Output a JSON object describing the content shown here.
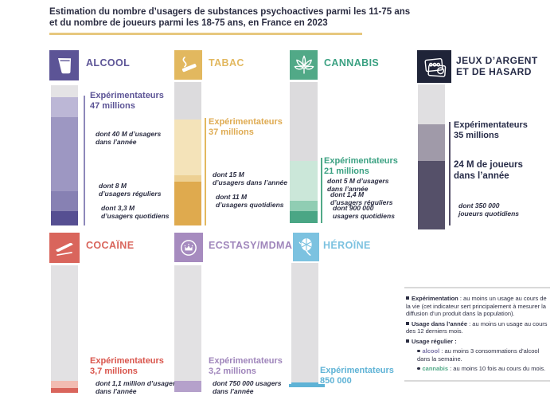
{
  "title": {
    "text": "Estimation du nombre d’usagers de substances psychoactives parmi les 11-75 ans\net du nombre de joueurs parmi les 18-75 ans, en France en 2023"
  },
  "colors": {
    "heading_navy": "#2b2d42",
    "title_underline_gold": "#e7c87e",
    "alcool_purple": "#5c5496",
    "tabac_gold": "#dfab52",
    "cannabis_green": "#3ba182",
    "jeux_navy": "#262b47",
    "cocaine_red": "#d9554c",
    "ecstasy_purple": "#9f85bb",
    "heroine_blue": "#5fb3d6",
    "bar_gray": "#e0dfe1"
  },
  "panels": [
    {
      "title": "ALCOOL",
      "accent": "#5c5496",
      "experimenters": "Expérimentateurs\n47 millions",
      "notes": [
        "dont 40 M d’usagers\ndans l’année",
        "dont 8 M\nd’usagers réguliers",
        "dont 3,3 M\nd’usagers quotidiens"
      ],
      "bar": {
        "segments": [
          {
            "color": "#e4e3e5",
            "h": 15
          },
          {
            "color": "#bcb7d6",
            "h": 25
          },
          {
            "color": "#9d97c2",
            "h": 93
          },
          {
            "color": "#8781b3",
            "h": 25
          },
          {
            "color": "#564f92",
            "h": 18
          }
        ]
      }
    },
    {
      "title": "TABAC",
      "accent": "#e2b85f",
      "experimenters": "Expérimentateurs\n37 millions",
      "notes": [
        "dont 15 M\nd’usagers dans l’année",
        "dont 11 M\nd’usagers quotidiens"
      ],
      "bar": {
        "segments": [
          {
            "color": "#dcdbdd",
            "h": 47
          },
          {
            "color": "#f4e3b9",
            "h": 70
          },
          {
            "color": "#edd093",
            "h": 8
          },
          {
            "color": "#dfaa4e",
            "h": 55
          }
        ]
      }
    },
    {
      "title": "CANNABIS",
      "accent": "#3ba182",
      "experimenters": "Expérimentateurs\n21 millions",
      "notes": [
        "dont 5 M d’usagers\ndans l’année",
        "dont 1,4 M\nd’usagers réguliers",
        "dont 900 000\nusagers quotidiens"
      ],
      "bar": {
        "segments": [
          {
            "color": "#dcdbdd",
            "h": 99
          },
          {
            "color": "#cbe7d9",
            "h": 50
          },
          {
            "color": "#90cdb3",
            "h": 13
          },
          {
            "color": "#4aa685",
            "h": 15
          }
        ]
      }
    },
    {
      "title": "JEUX D’ARGENT\nET DE HASARD",
      "accent": "#262b47",
      "experimenters": "Expérimentateurs\n35 millions",
      "players": "24 M de joueurs\ndans l’année",
      "notes": [
        "dont 350 000\njoueurs quotidiens"
      ],
      "bar": {
        "segments": [
          {
            "color": "#e0dfe1",
            "h": 50
          },
          {
            "color": "#a09aa9",
            "h": 46
          },
          {
            "color": "#555069",
            "h": 86
          }
        ]
      }
    },
    {
      "title": "COCAÏNE",
      "accent": "#d9655c",
      "experimenters": "Expérimentateurs\n3,7 millions",
      "notes": [
        "dont 1,1 million d’usagers\ndans l’année"
      ],
      "bar": {
        "segments": [
          {
            "color": "#e2e1e3",
            "h": 145
          },
          {
            "color": "#f2bcb2",
            "h": 9
          },
          {
            "color": "#d9655c",
            "h": 6
          }
        ]
      }
    },
    {
      "title": "ECSTASY/MDMA",
      "accent": "#9f85bb",
      "experimenters": "Expérimentateurs\n3,2 millions",
      "notes": [
        "dont 750 000 usagers\ndans l’année"
      ],
      "bar": {
        "segments": [
          {
            "color": "#e2e1e3",
            "h": 145
          },
          {
            "color": "#b5a1cb",
            "h": 14
          }
        ]
      }
    },
    {
      "title": "HÉROÏNE",
      "accent": "#7cc2e0",
      "experimenters": "Expérimentateurs\n850 000",
      "notes": [],
      "bar": {
        "segments": [
          {
            "color": "#e0dfe1",
            "h": 150
          },
          {
            "color": "#5fb3d6",
            "h": 3
          }
        ]
      }
    }
  ],
  "legend": {
    "items": [
      {
        "term": "Expérimentation",
        "text": " : au moins un usage au cours de la vie (cet indicateur sert principalement à mesurer la diffusion d’un produit dans la population)."
      },
      {
        "term": "Usage dans l’année",
        "text": " : au moins un usage au cours des 12 derniers mois."
      },
      {
        "term": "Usage régulier :",
        "text": ""
      },
      {
        "term": "alcool",
        "text": " : au moins 3 consommations d’alcool dans la semaine.",
        "color": "#7a74a8"
      },
      {
        "term": "cannabis",
        "text": " : au moins 10 fois au cours du mois.",
        "color": "#51a987"
      }
    ]
  },
  "chart_data": [
    {
      "type": "bar",
      "title": "Alcool",
      "unit": "personnes (millions)",
      "series": [
        {
          "name": "Expérimentateurs",
          "value": 47
        },
        {
          "name": "Usagers dans l’année",
          "value": 40
        },
        {
          "name": "Usagers réguliers",
          "value": 8
        },
        {
          "name": "Usagers quotidiens",
          "value": 3.3
        }
      ]
    },
    {
      "type": "bar",
      "title": "Tabac",
      "unit": "personnes (millions)",
      "series": [
        {
          "name": "Expérimentateurs",
          "value": 37
        },
        {
          "name": "Usagers dans l’année",
          "value": 15
        },
        {
          "name": "Usagers quotidiens",
          "value": 11
        }
      ]
    },
    {
      "type": "bar",
      "title": "Cannabis",
      "unit": "personnes (millions)",
      "series": [
        {
          "name": "Expérimentateurs",
          "value": 21
        },
        {
          "name": "Usagers dans l’année",
          "value": 5
        },
        {
          "name": "Usagers réguliers",
          "value": 1.4
        },
        {
          "name": "Usagers quotidiens",
          "value": 0.9
        }
      ]
    },
    {
      "type": "bar",
      "title": "Jeux d’argent et de hasard",
      "unit": "personnes (millions)",
      "series": [
        {
          "name": "Expérimentateurs",
          "value": 35
        },
        {
          "name": "Joueurs dans l’année",
          "value": 24
        },
        {
          "name": "Joueurs quotidiens",
          "value": 0.35
        }
      ]
    },
    {
      "type": "bar",
      "title": "Cocaïne",
      "unit": "personnes (millions)",
      "series": [
        {
          "name": "Expérimentateurs",
          "value": 3.7
        },
        {
          "name": "Usagers dans l’année",
          "value": 1.1
        }
      ]
    },
    {
      "type": "bar",
      "title": "Ecstasy/MDMA",
      "unit": "personnes (millions)",
      "series": [
        {
          "name": "Expérimentateurs",
          "value": 3.2
        },
        {
          "name": "Usagers dans l’année",
          "value": 0.75
        }
      ]
    },
    {
      "type": "bar",
      "title": "Héroïne",
      "unit": "personnes (millions)",
      "series": [
        {
          "name": "Expérimentateurs",
          "value": 0.85
        }
      ]
    }
  ]
}
